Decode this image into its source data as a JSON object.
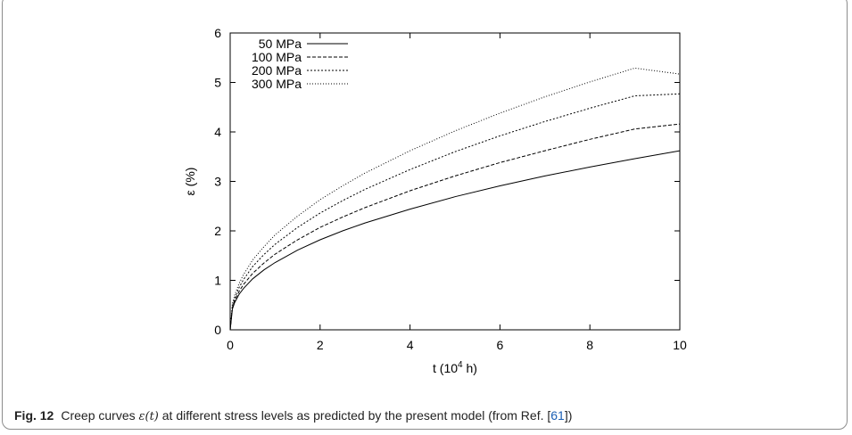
{
  "chart_data": {
    "type": "line",
    "xlabel_prefix": "t (10",
    "xlabel_exp": "4",
    "xlabel_suffix": " h)",
    "ylabel": "ε (%)",
    "xlim": [
      0,
      10
    ],
    "ylim": [
      0,
      6
    ],
    "xticks": [
      0,
      2,
      4,
      6,
      8,
      10
    ],
    "yticks": [
      0,
      1,
      2,
      3,
      4,
      5,
      6
    ],
    "grid": false,
    "legend_position": "top-left",
    "x": [
      0,
      0.05,
      0.1,
      0.2,
      0.3,
      0.5,
      0.75,
      1,
      1.5,
      2,
      2.5,
      3,
      4,
      5,
      6,
      7,
      8,
      9,
      10
    ],
    "series": [
      {
        "name": "50 MPa",
        "dash": "solid",
        "values": [
          0,
          0.42,
          0.55,
          0.72,
          0.84,
          1.03,
          1.21,
          1.36,
          1.61,
          1.82,
          2.0,
          2.16,
          2.44,
          2.69,
          2.91,
          3.11,
          3.29,
          3.46,
          3.62
        ]
      },
      {
        "name": "100 MPa",
        "dash": "dashed",
        "values": [
          0,
          0.45,
          0.59,
          0.78,
          0.92,
          1.14,
          1.35,
          1.53,
          1.82,
          2.07,
          2.28,
          2.47,
          2.81,
          3.11,
          3.38,
          3.62,
          3.85,
          4.06,
          4.16
        ]
      },
      {
        "name": "200 MPa",
        "dash": "dotted",
        "values": [
          0,
          0.48,
          0.64,
          0.86,
          1.02,
          1.28,
          1.52,
          1.73,
          2.07,
          2.36,
          2.61,
          2.84,
          3.24,
          3.6,
          3.92,
          4.21,
          4.48,
          4.73,
          4.77
        ]
      },
      {
        "name": "300 MPa",
        "dash": "fine-dotted",
        "values": [
          0,
          0.52,
          0.7,
          0.94,
          1.12,
          1.41,
          1.68,
          1.92,
          2.3,
          2.63,
          2.91,
          3.17,
          3.62,
          4.02,
          4.38,
          4.71,
          5.01,
          5.29,
          5.17
        ]
      }
    ]
  },
  "caption": {
    "label": "Fig. 12",
    "text_before": "Creep curves ",
    "math": "ε(t)",
    "text_after": " at different stress levels as predicted by the present model (from Ref. [",
    "ref": "61",
    "text_end": "])"
  }
}
